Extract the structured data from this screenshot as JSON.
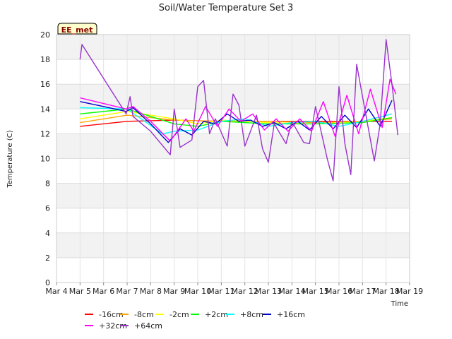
{
  "chart_data": {
    "type": "line",
    "title": "Soil/Water Temperature Set 3",
    "xlabel": "Time",
    "ylabel": "Temperature (C)",
    "xlim": [
      "Mar 4",
      "Mar 19"
    ],
    "ylim": [
      0,
      20
    ],
    "x_ticks": [
      "Mar 4",
      "Mar 5",
      "Mar 6",
      "Mar 7",
      "Mar 8",
      "Mar 9",
      "Mar 10",
      "Mar 11",
      "Mar 12",
      "Mar 13",
      "Mar 14",
      "Mar 15",
      "Mar 16",
      "Mar 17",
      "Mar 18",
      "Mar 19"
    ],
    "y_ticks": [
      0,
      2,
      4,
      6,
      8,
      10,
      12,
      14,
      16,
      18,
      20
    ],
    "grid": "alternating horizontal bands",
    "legend_position": "bottom",
    "annotation": "EE_met",
    "series": [
      {
        "name": "-16cm",
        "color": "#ff0000",
        "x": [
          "Mar 5 00:00",
          "Mar 7 00:00",
          "Mar 9 00:00",
          "Mar 11 00:00",
          "Mar 13 00:00",
          "Mar 15 00:00",
          "Mar 17 00:00",
          "Mar 18 06:00"
        ],
        "y": [
          12.6,
          13.0,
          13.1,
          13.0,
          13.0,
          13.0,
          13.0,
          13.0
        ]
      },
      {
        "name": "-8cm",
        "color": "#ffa500",
        "x": [
          "Mar 5 00:00",
          "Mar 7 00:00",
          "Mar 9 00:00",
          "Mar 11 00:00",
          "Mar 13 00:00",
          "Mar 15 00:00",
          "Mar 17 00:00",
          "Mar 18 06:00"
        ],
        "y": [
          12.9,
          13.5,
          13.1,
          13.0,
          13.0,
          12.9,
          13.0,
          13.2
        ]
      },
      {
        "name": "-2cm",
        "color": "#ffff00",
        "x": [
          "Mar 5 00:00",
          "Mar 7 00:00",
          "Mar 9 00:00",
          "Mar 10 00:00",
          "Mar 11 00:00",
          "Mar 13 00:00",
          "Mar 15 00:00",
          "Mar 17 00:00",
          "Mar 18 06:00"
        ],
        "y": [
          13.2,
          13.8,
          13.2,
          12.8,
          13.1,
          12.9,
          12.8,
          13.0,
          13.3
        ]
      },
      {
        "name": "+2cm",
        "color": "#00ff00",
        "x": [
          "Mar 5 00:00",
          "Mar 7 00:00",
          "Mar 9 00:00",
          "Mar 10 00:00",
          "Mar 11 00:00",
          "Mar 13 00:00",
          "Mar 15 00:00",
          "Mar 17 00:00",
          "Mar 18 06:00"
        ],
        "y": [
          13.6,
          14.0,
          12.8,
          12.6,
          13.0,
          12.8,
          12.8,
          12.9,
          13.3
        ]
      },
      {
        "name": "+8cm",
        "color": "#00ffff",
        "x": [
          "Mar 5 00:00",
          "Mar 7 00:00",
          "Mar 8 12:00",
          "Mar 9 00:00",
          "Mar 10 00:00",
          "Mar 11 00:00",
          "Mar 12 00:00",
          "Mar 13 00:00",
          "Mar 14 00:00",
          "Mar 15 00:00",
          "Mar 16 00:00",
          "Mar 17 00:00",
          "Mar 18 06:00"
        ],
        "y": [
          14.1,
          14.0,
          12.0,
          12.2,
          12.3,
          13.0,
          13.2,
          12.6,
          12.9,
          13.0,
          12.6,
          13.0,
          13.6
        ]
      },
      {
        "name": "+16cm",
        "color": "#0000cd",
        "x": [
          "Mar 5 00:00",
          "Mar 6 00:00",
          "Mar 6 23:00",
          "Mar 7 06:00",
          "Mar 8 00:00",
          "Mar 8 18:00",
          "Mar 9 06:00",
          "Mar 9 18:00",
          "Mar 10 06:00",
          "Mar 10 18:00",
          "Mar 11 06:00",
          "Mar 11 18:00",
          "Mar 12 06:00",
          "Mar 12 18:00",
          "Mar 13 06:00",
          "Mar 13 18:00",
          "Mar 14 06:00",
          "Mar 14 18:00",
          "Mar 15 06:00",
          "Mar 15 18:00",
          "Mar 16 06:00",
          "Mar 16 18:00",
          "Mar 17 06:00",
          "Mar 17 18:00",
          "Mar 18 06:00"
        ],
        "y": [
          14.6,
          14.2,
          13.8,
          14.1,
          12.8,
          11.3,
          12.4,
          11.9,
          13.0,
          12.8,
          13.6,
          13.0,
          13.1,
          12.6,
          12.9,
          12.4,
          13.0,
          12.3,
          13.4,
          12.4,
          13.5,
          12.5,
          14.0,
          12.6,
          14.7
        ]
      },
      {
        "name": "+32cm",
        "color": "#ff00ff",
        "x": [
          "Mar 5 00:00",
          "Mar 6 23:00",
          "Mar 7 06:00",
          "Mar 8 00:00",
          "Mar 8 20:00",
          "Mar 9 12:00",
          "Mar 9 20:00",
          "Mar 10 08:00",
          "Mar 10 20:00",
          "Mar 11 08:00",
          "Mar 11 20:00",
          "Mar 12 08:00",
          "Mar 12 20:00",
          "Mar 13 08:00",
          "Mar 13 20:00",
          "Mar 14 08:00",
          "Mar 14 20:00",
          "Mar 15 08:00",
          "Mar 15 20:00",
          "Mar 16 08:00",
          "Mar 16 20:00",
          "Mar 17 08:00",
          "Mar 17 20:00",
          "Mar 18 04:00",
          "Mar 18 10:00"
        ],
        "y": [
          14.9,
          14.0,
          14.2,
          13.0,
          11.4,
          13.2,
          12.2,
          14.2,
          12.6,
          14.0,
          13.0,
          13.6,
          12.3,
          13.2,
          12.2,
          13.2,
          12.2,
          14.6,
          11.8,
          15.1,
          12.0,
          15.6,
          12.5,
          16.4,
          15.2
        ]
      },
      {
        "name": "+64cm",
        "color": "#9932cc",
        "x": [
          "Mar 5 00:00",
          "Mar 5 02:00",
          "Mar 6 23:00",
          "Mar 7 03:00",
          "Mar 7 06:00",
          "Mar 8 00:00",
          "Mar 8 20:00",
          "Mar 9 00:00",
          "Mar 9 06:00",
          "Mar 9 18:00",
          "Mar 10 00:00",
          "Mar 10 06:00",
          "Mar 10 12:00",
          "Mar 10 18:00",
          "Mar 11 06:00",
          "Mar 11 12:00",
          "Mar 11 18:00",
          "Mar 12 00:00",
          "Mar 12 12:00",
          "Mar 12 18:00",
          "Mar 13 00:00",
          "Mar 13 06:00",
          "Mar 13 18:00",
          "Mar 14 00:00",
          "Mar 14 12:00",
          "Mar 14 18:00",
          "Mar 15 00:00",
          "Mar 15 12:00",
          "Mar 15 18:00",
          "Mar 16 00:00",
          "Mar 16 06:00",
          "Mar 16 12:00",
          "Mar 16 18:00",
          "Mar 17 00:00",
          "Mar 17 12:00",
          "Mar 17 18:00",
          "Mar 18 00:00",
          "Mar 18 06:00",
          "Mar 18 12:00"
        ],
        "y": [
          18.0,
          19.2,
          13.6,
          15.0,
          13.4,
          12.2,
          10.3,
          14.0,
          10.9,
          11.5,
          15.8,
          16.3,
          12.0,
          13.2,
          11.0,
          15.2,
          14.3,
          11.0,
          13.5,
          10.8,
          9.7,
          12.8,
          11.2,
          13.0,
          11.3,
          11.2,
          14.2,
          10.0,
          8.2,
          15.8,
          11.2,
          8.7,
          17.6,
          15.0,
          9.8,
          12.8,
          19.6,
          16.0,
          11.9
        ]
      }
    ]
  }
}
